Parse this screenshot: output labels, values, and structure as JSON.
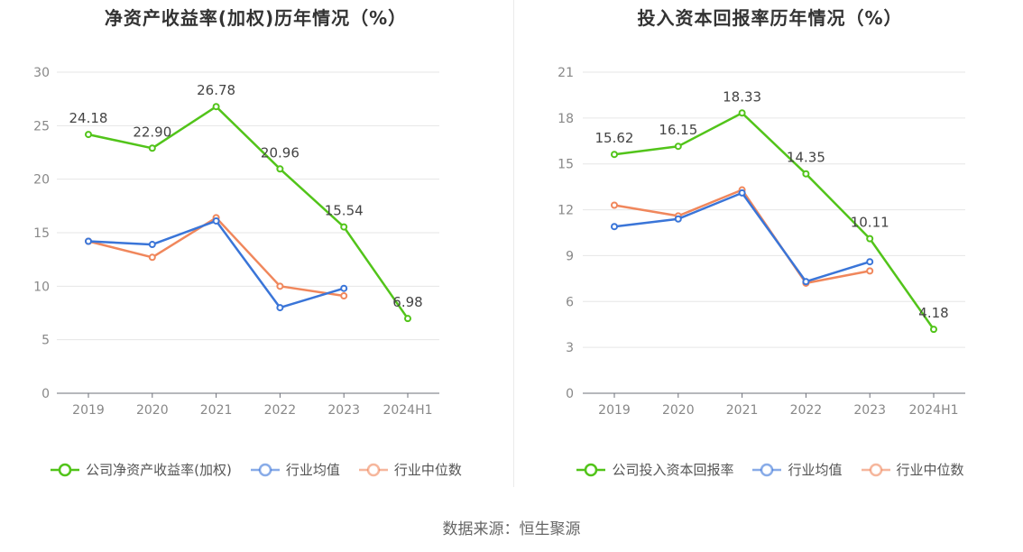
{
  "source": "数据来源：恒生聚源",
  "chart_data": [
    {
      "type": "line",
      "title": "净资产收益率(加权)历年情况（%）",
      "categories": [
        "2019",
        "2020",
        "2021",
        "2022",
        "2023",
        "2024H1"
      ],
      "ylim": [
        0,
        30
      ],
      "yticks": [
        0,
        5,
        10,
        15,
        20,
        25,
        30
      ],
      "grid": true,
      "legend_position": "bottom",
      "series": [
        {
          "name": "公司净资产收益率(加权)",
          "color": "#52c41a",
          "values": [
            24.18,
            22.9,
            26.78,
            20.96,
            15.54,
            6.98
          ],
          "labels": [
            "24.18",
            "22.90",
            "26.78",
            "20.96",
            "15.54",
            "6.98"
          ]
        },
        {
          "name": "行业均值",
          "color": "#3a75d8",
          "values": [
            14.2,
            13.9,
            16.1,
            8.0,
            9.8,
            null
          ]
        },
        {
          "name": "行业中位数",
          "color": "#f0875c",
          "values": [
            14.2,
            12.7,
            16.4,
            10.0,
            9.1,
            null
          ]
        }
      ]
    },
    {
      "type": "line",
      "title": "投入资本回报率历年情况（%）",
      "categories": [
        "2019",
        "2020",
        "2021",
        "2022",
        "2023",
        "2024H1"
      ],
      "ylim": [
        0,
        21
      ],
      "yticks": [
        0,
        3,
        6,
        9,
        12,
        15,
        18,
        21
      ],
      "grid": true,
      "legend_position": "bottom",
      "series": [
        {
          "name": "公司投入资本回报率",
          "color": "#52c41a",
          "values": [
            15.62,
            16.15,
            18.33,
            14.35,
            10.11,
            4.18
          ],
          "labels": [
            "15.62",
            "16.15",
            "18.33",
            "14.35",
            "10.11",
            "4.18"
          ]
        },
        {
          "name": "行业均值",
          "color": "#3a75d8",
          "values": [
            10.9,
            11.4,
            13.1,
            7.3,
            8.6,
            null
          ]
        },
        {
          "name": "行业中位数",
          "color": "#f0875c",
          "values": [
            12.3,
            11.6,
            13.3,
            7.2,
            8.0,
            null
          ]
        }
      ]
    }
  ]
}
